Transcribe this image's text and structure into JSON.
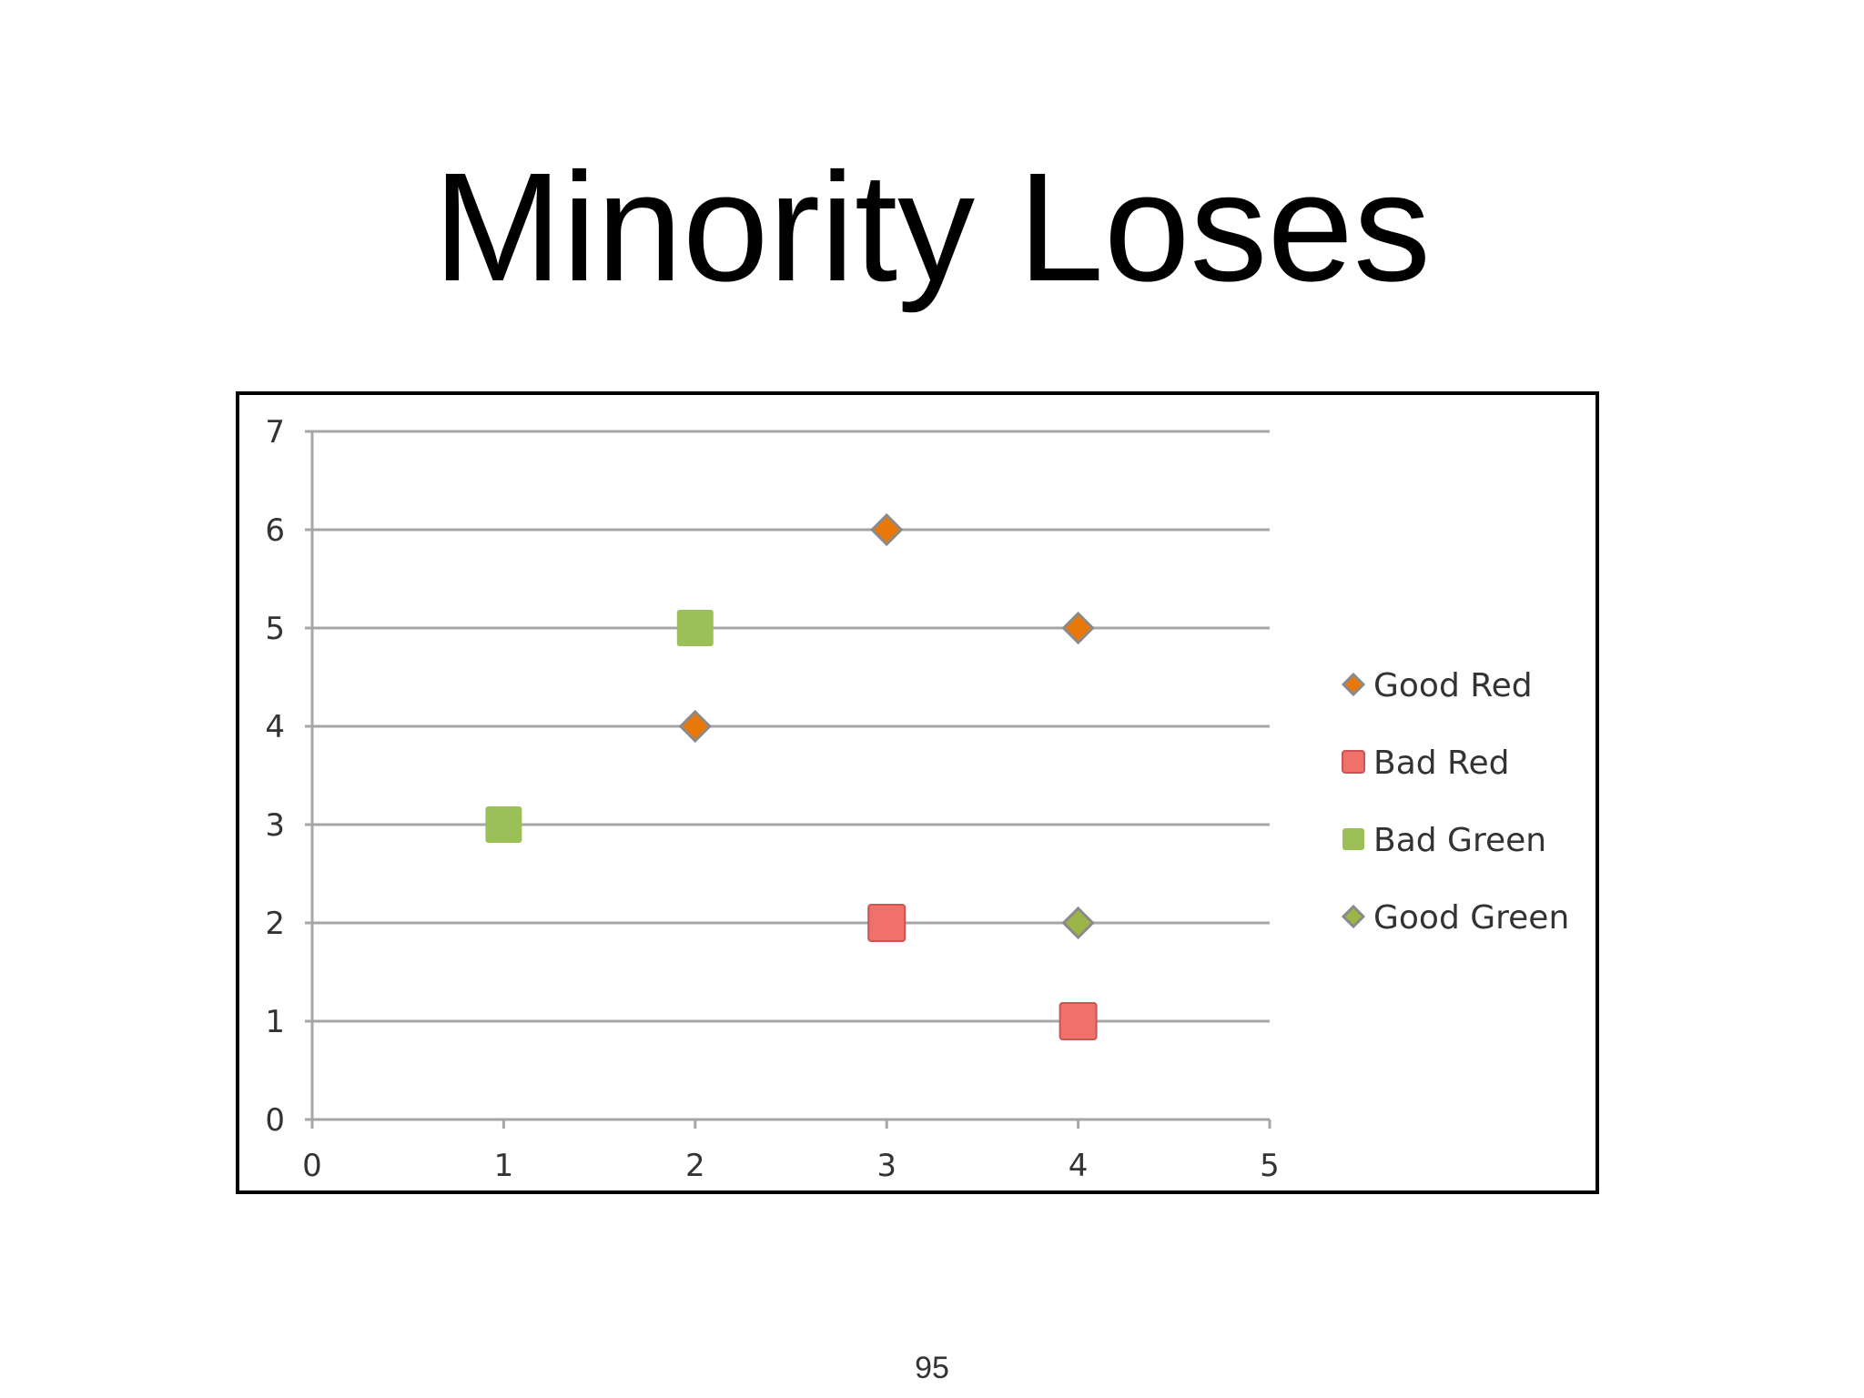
{
  "slide": {
    "title": "Minority Loses",
    "page_number": "95"
  },
  "chart_data": {
    "type": "scatter",
    "xlim": [
      0,
      5
    ],
    "ylim": [
      0,
      7
    ],
    "x_ticks": [
      0,
      1,
      2,
      3,
      4,
      5
    ],
    "y_ticks": [
      0,
      1,
      2,
      3,
      4,
      5,
      6,
      7
    ],
    "grid": "horizontal",
    "legend_position": "right",
    "series": [
      {
        "name": "Good Red",
        "marker": "diamond",
        "color": "#E8780A",
        "points": [
          [
            2,
            4
          ],
          [
            3,
            6
          ],
          [
            4,
            5
          ]
        ]
      },
      {
        "name": "Bad Red",
        "marker": "square",
        "color": "#F0706A",
        "points": [
          [
            3,
            2
          ],
          [
            4,
            1
          ]
        ]
      },
      {
        "name": "Bad Green",
        "marker": "square",
        "color": "#9BC057",
        "points": [
          [
            1,
            3
          ],
          [
            2,
            5
          ]
        ]
      },
      {
        "name": "Good Green",
        "marker": "diamond",
        "color": "#9BB548",
        "points": [
          [
            4,
            2
          ]
        ]
      }
    ]
  }
}
